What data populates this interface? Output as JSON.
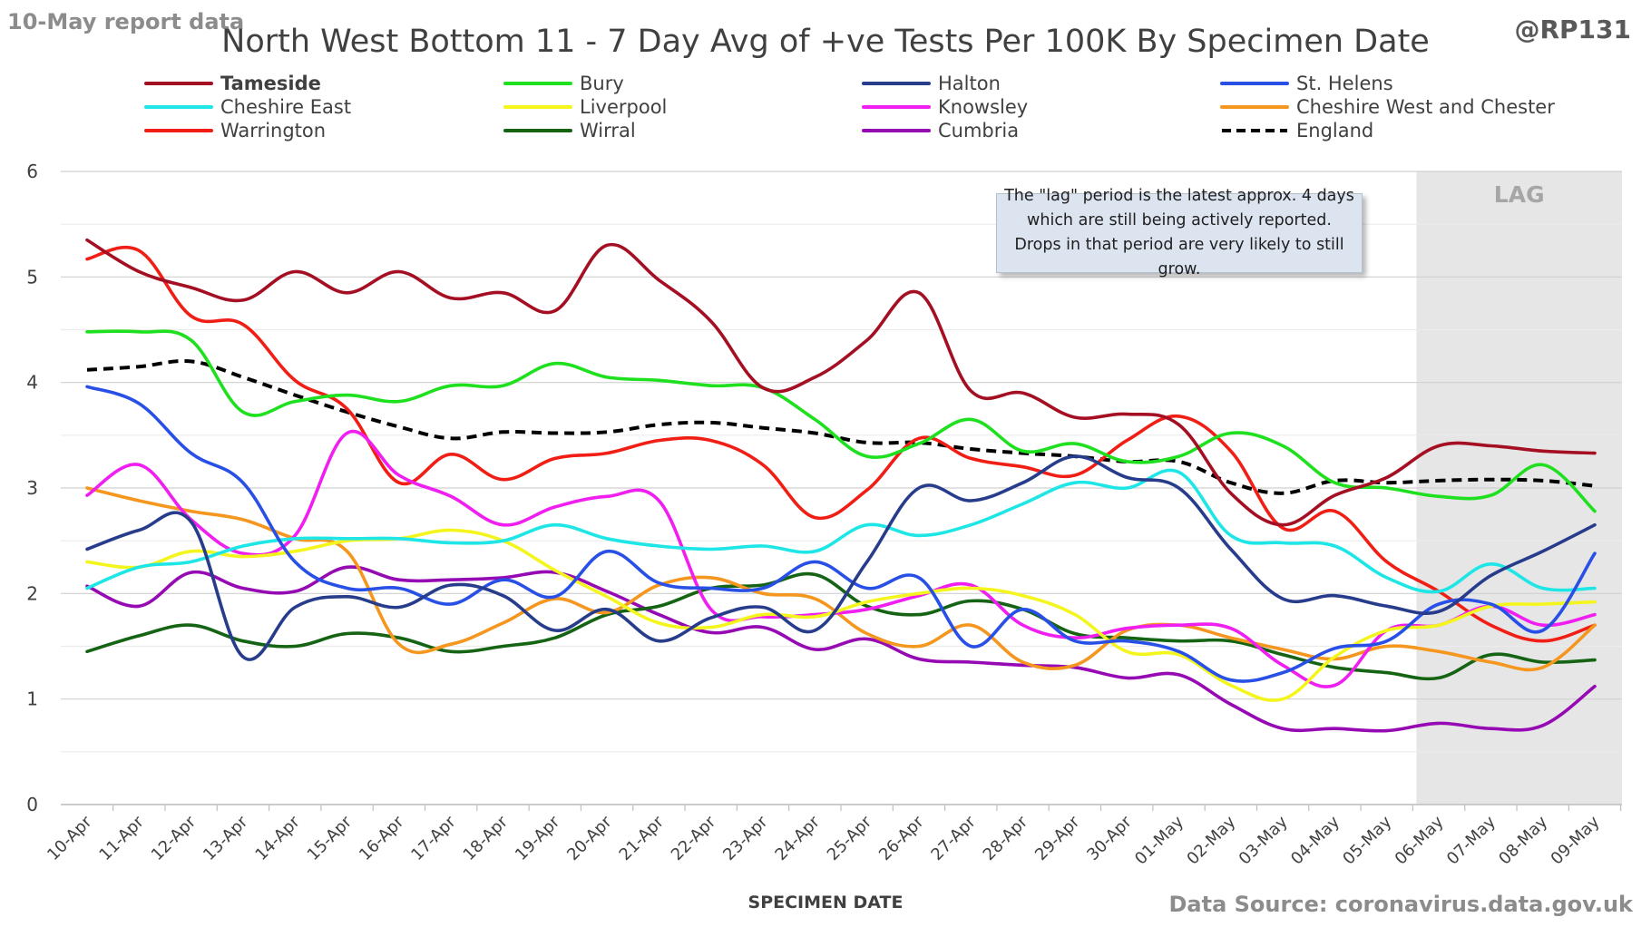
{
  "header": {
    "report_label": "10-May report data",
    "handle": "@RP131",
    "source": "Data Source: coronavirus.data.gov.uk"
  },
  "annotation": "The \"lag\" period is the latest approx. 4 days which are still being actively reported.  Drops in that period are very likely to still grow.",
  "chart_data": {
    "type": "line",
    "title": "North West Bottom 11 - 7 Day Avg of +ve Tests Per 100K By Specimen Date",
    "xlabel": "SPECIMEN DATE",
    "ylabel": "",
    "ylim": [
      0,
      6
    ],
    "yticks": [
      0,
      1,
      2,
      3,
      4,
      5,
      6
    ],
    "grid": true,
    "legend_position": "top",
    "lag_region": {
      "label": "LAG",
      "from": "05-May",
      "to": "09-May",
      "color": "#e6e6e6"
    },
    "categories": [
      "10-Apr",
      "11-Apr",
      "12-Apr",
      "13-Apr",
      "14-Apr",
      "15-Apr",
      "16-Apr",
      "17-Apr",
      "18-Apr",
      "19-Apr",
      "20-Apr",
      "21-Apr",
      "22-Apr",
      "23-Apr",
      "24-Apr",
      "25-Apr",
      "26-Apr",
      "27-Apr",
      "28-Apr",
      "29-Apr",
      "30-Apr",
      "01-May",
      "02-May",
      "03-May",
      "04-May",
      "05-May",
      "06-May",
      "07-May",
      "08-May",
      "09-May"
    ],
    "series": [
      {
        "name": "Tameside",
        "color": "#a50f23",
        "dash": false,
        "bold": true,
        "values": [
          5.35,
          5.05,
          4.9,
          4.78,
          5.05,
          4.85,
          5.05,
          4.8,
          4.85,
          4.68,
          5.3,
          4.97,
          4.58,
          3.95,
          4.05,
          4.4,
          4.85,
          3.92,
          3.9,
          3.67,
          3.7,
          3.6,
          2.95,
          2.65,
          2.93,
          3.1,
          3.4,
          3.4,
          3.35,
          3.33
        ]
      },
      {
        "name": "Bury",
        "color": "#1ee01e",
        "dash": false,
        "values": [
          4.48,
          4.48,
          4.4,
          3.72,
          3.82,
          3.88,
          3.82,
          3.97,
          3.97,
          4.18,
          4.05,
          4.02,
          3.97,
          3.95,
          3.65,
          3.3,
          3.42,
          3.65,
          3.35,
          3.42,
          3.25,
          3.3,
          3.52,
          3.4,
          3.05,
          3.0,
          2.92,
          2.93,
          3.22,
          2.78
        ]
      },
      {
        "name": "Halton",
        "color": "#283c8c",
        "dash": false,
        "values": [
          2.42,
          2.6,
          2.68,
          1.4,
          1.87,
          1.97,
          1.87,
          2.08,
          1.98,
          1.65,
          1.85,
          1.55,
          1.77,
          1.87,
          1.65,
          2.3,
          3.0,
          2.88,
          3.05,
          3.3,
          3.1,
          3.0,
          2.42,
          1.95,
          1.98,
          1.88,
          1.83,
          2.17,
          2.4,
          2.65
        ]
      },
      {
        "name": "St. Helens",
        "color": "#2850e6",
        "dash": false,
        "values": [
          3.96,
          3.8,
          3.33,
          3.05,
          2.3,
          2.05,
          2.05,
          1.9,
          2.13,
          1.97,
          2.4,
          2.1,
          2.05,
          2.05,
          2.3,
          2.05,
          2.15,
          1.5,
          1.85,
          1.55,
          1.55,
          1.45,
          1.18,
          1.25,
          1.48,
          1.55,
          1.9,
          1.9,
          1.65,
          2.38
        ]
      },
      {
        "name": "Cheshire East",
        "color": "#1ee6e6",
        "dash": false,
        "values": [
          2.05,
          2.25,
          2.3,
          2.45,
          2.52,
          2.52,
          2.52,
          2.48,
          2.5,
          2.65,
          2.52,
          2.45,
          2.42,
          2.45,
          2.4,
          2.65,
          2.55,
          2.65,
          2.85,
          3.05,
          3.0,
          3.15,
          2.55,
          2.48,
          2.45,
          2.15,
          2.02,
          2.28,
          2.05,
          2.05
        ]
      },
      {
        "name": "Liverpool",
        "color": "#f5f51e",
        "dash": false,
        "values": [
          2.3,
          2.25,
          2.4,
          2.35,
          2.4,
          2.5,
          2.52,
          2.6,
          2.5,
          2.22,
          1.97,
          1.72,
          1.68,
          1.8,
          1.78,
          1.92,
          2.0,
          2.05,
          1.98,
          1.8,
          1.45,
          1.42,
          1.13,
          1.0,
          1.4,
          1.65,
          1.7,
          1.88,
          1.9,
          1.92
        ]
      },
      {
        "name": "Knowsley",
        "color": "#f01ef0",
        "dash": false,
        "values": [
          2.93,
          3.22,
          2.7,
          2.38,
          2.55,
          3.52,
          3.12,
          2.92,
          2.65,
          2.82,
          2.92,
          2.88,
          1.85,
          1.78,
          1.8,
          1.85,
          1.98,
          2.08,
          1.7,
          1.58,
          1.67,
          1.7,
          1.67,
          1.32,
          1.13,
          1.65,
          1.7,
          1.88,
          1.7,
          1.8
        ]
      },
      {
        "name": "Cheshire West and Chester",
        "color": "#f5961e",
        "dash": false,
        "values": [
          3.0,
          2.88,
          2.78,
          2.7,
          2.52,
          2.4,
          1.52,
          1.52,
          1.72,
          1.95,
          1.82,
          2.08,
          2.15,
          2.0,
          1.95,
          1.62,
          1.5,
          1.7,
          1.35,
          1.32,
          1.65,
          1.7,
          1.58,
          1.47,
          1.38,
          1.5,
          1.45,
          1.35,
          1.3,
          1.7
        ]
      },
      {
        "name": "Warrington",
        "color": "#f01e14",
        "dash": false,
        "values": [
          5.17,
          5.25,
          4.63,
          4.55,
          4.02,
          3.75,
          3.05,
          3.32,
          3.08,
          3.28,
          3.33,
          3.45,
          3.45,
          3.22,
          2.72,
          2.98,
          3.47,
          3.28,
          3.2,
          3.12,
          3.45,
          3.68,
          3.35,
          2.62,
          2.78,
          2.3,
          2.02,
          1.7,
          1.55,
          1.7
        ]
      },
      {
        "name": "Wirral",
        "color": "#146414",
        "dash": false,
        "values": [
          1.45,
          1.6,
          1.7,
          1.55,
          1.5,
          1.62,
          1.58,
          1.45,
          1.5,
          1.58,
          1.8,
          1.88,
          2.05,
          2.08,
          2.18,
          1.88,
          1.8,
          1.93,
          1.85,
          1.62,
          1.58,
          1.55,
          1.55,
          1.42,
          1.3,
          1.25,
          1.2,
          1.42,
          1.35,
          1.37
        ]
      },
      {
        "name": "Cumbria",
        "color": "#960ab4",
        "dash": false,
        "values": [
          2.07,
          1.88,
          2.2,
          2.05,
          2.02,
          2.25,
          2.13,
          2.13,
          2.15,
          2.2,
          2.02,
          1.8,
          1.63,
          1.68,
          1.47,
          1.57,
          1.38,
          1.35,
          1.32,
          1.3,
          1.2,
          1.23,
          0.95,
          0.72,
          0.72,
          0.7,
          0.77,
          0.72,
          0.75,
          1.12
        ]
      },
      {
        "name": "England",
        "color": "#000000",
        "dash": true,
        "values": [
          4.12,
          4.15,
          4.2,
          4.05,
          3.88,
          3.72,
          3.58,
          3.47,
          3.53,
          3.52,
          3.53,
          3.6,
          3.62,
          3.57,
          3.52,
          3.43,
          3.43,
          3.37,
          3.33,
          3.3,
          3.25,
          3.25,
          3.05,
          2.95,
          3.07,
          3.05,
          3.07,
          3.08,
          3.07,
          3.02
        ]
      }
    ]
  }
}
